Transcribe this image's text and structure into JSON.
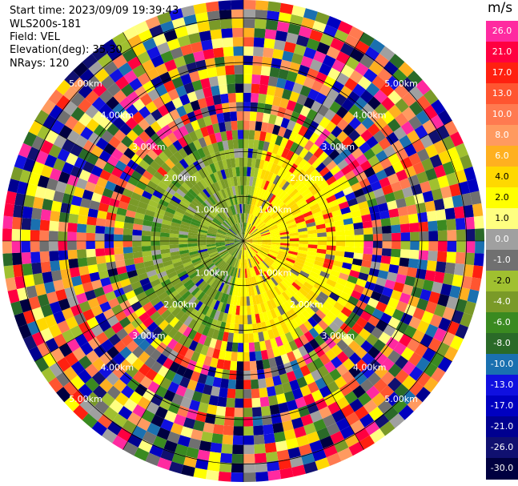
{
  "info": {
    "start_time": "Start time: 2023/09/09 19:39:43",
    "instrument": "WLS200s-181",
    "field": "Field: VEL",
    "elevation": "Elevation(deg): 35.30",
    "nrays": "NRays: 120"
  },
  "colorbar": {
    "unit": "m/s",
    "levels": [
      "26.0",
      "21.0",
      "17.0",
      "13.0",
      "10.0",
      "8.0",
      "6.0",
      "4.0",
      "2.0",
      "1.0",
      "0.0",
      "-1.0",
      "-2.0",
      "-4.0",
      "-6.0",
      "-8.0",
      "-10.0",
      "-13.0",
      "-17.0",
      "-21.0",
      "-26.0",
      "-30.0"
    ],
    "colors": [
      "#ff2aa0",
      "#ff0040",
      "#ff2010",
      "#ff5530",
      "#ff7a50",
      "#ff9a60",
      "#ffb020",
      "#ffd800",
      "#ffff00",
      "#ffff80",
      "#a0a0a0",
      "#707070",
      "#a0c030",
      "#7a9a28",
      "#3a8a20",
      "#2a6a28",
      "#1a70b0",
      "#1010e0",
      "#0000c0",
      "#000090",
      "#101070",
      "#000040"
    ]
  },
  "range_labels": [
    "1.00km",
    "2.00km",
    "3.00km",
    "4.00km",
    "5.00km"
  ],
  "ppi": {
    "nrays": 120,
    "ngates": 26,
    "max_range_km": 5.4,
    "ring_interval_km": 1.0
  }
}
